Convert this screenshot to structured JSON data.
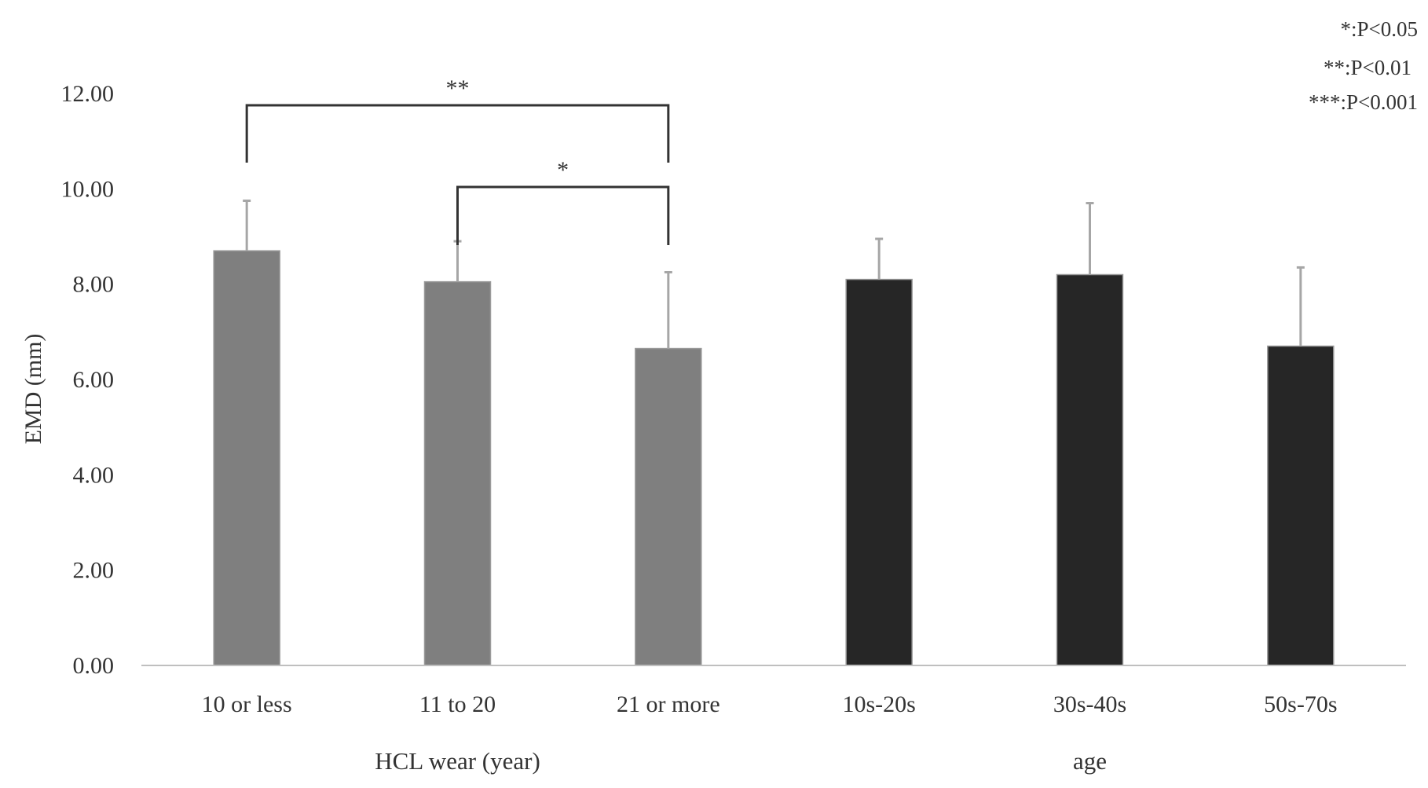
{
  "chart_data": {
    "type": "bar",
    "ylabel": "EMD (mm)",
    "ylim": [
      0,
      12
    ],
    "yticks": [
      "0.00",
      "2.00",
      "4.00",
      "6.00",
      "8.00",
      "10.00",
      "12.00"
    ],
    "grid": false,
    "categories": [
      "10 or less",
      "11 to 20",
      "21 or more",
      "10s-20s",
      "30s-40s",
      "50s-70s"
    ],
    "values": [
      8.7,
      8.05,
      6.65,
      8.1,
      8.2,
      6.7
    ],
    "error_upper": [
      1.05,
      0.85,
      1.6,
      0.85,
      1.5,
      1.65
    ],
    "groups": [
      {
        "label": "HCL wear (year)",
        "categories": [
          "10 or less",
          "11 to 20",
          "21 or more"
        ],
        "color": "#7f7f7f"
      },
      {
        "label": "age",
        "categories": [
          "10s-20s",
          "30s-40s",
          "50s-70s"
        ],
        "color": "#262626"
      }
    ],
    "error_bar_color": "#a6a6a6",
    "significance": [
      {
        "from": "10 or less",
        "to": "21 or more",
        "marker": "**"
      },
      {
        "from": "11 to 20",
        "to": "21 or more",
        "marker": "*"
      }
    ],
    "legend": [
      "*:P<0.05",
      "**:P<0.01",
      "***:P<0.001"
    ]
  }
}
